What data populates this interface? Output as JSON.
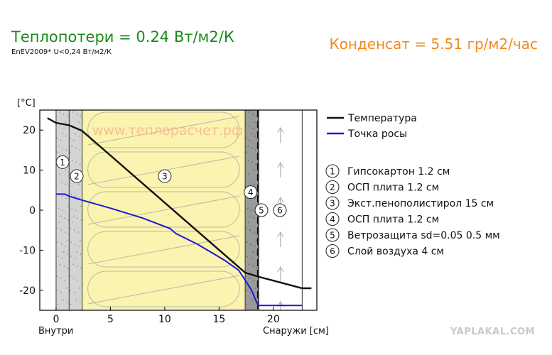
{
  "header": {
    "heat_loss": "Теплопотери = 0.24 Вт/м2/К",
    "norm": "EnEV2009* U<0,24 Вт/м2/К",
    "condensate": "Конденсат = 5.51 гр/м2/час"
  },
  "watermark": "www.теплорасчет.рф",
  "site_badge": "YAPLAKAL.COM",
  "colors": {
    "heat_loss": "#1a8a1a",
    "condensate": "#f08a1c",
    "temperature": "#111111",
    "dew_point": "#1a1ad0",
    "insulation": "#fbf3b0",
    "board": "#d4d4d4",
    "osb_outer": "#9a9a9a"
  },
  "chart_data": {
    "type": "line",
    "title": "",
    "ylabel": "[°C]",
    "xlabel_left": "Внутри",
    "xlabel_right": "Снаружи [см]",
    "xlim": [
      -1.5,
      24
    ],
    "ylim": [
      -25,
      25
    ],
    "x_ticks": [
      0,
      5,
      10,
      15,
      20
    ],
    "y_ticks": [
      20,
      10,
      0,
      -10,
      -20
    ],
    "legend": {
      "position": "right",
      "series_names": [
        "Температура",
        "Точка росы"
      ]
    },
    "layers": [
      {
        "num": "1",
        "name": "Гипсокартон 1.2 см",
        "x0": 0,
        "x1": 1.2,
        "fill": "board"
      },
      {
        "num": "2",
        "name": "ОСП плита 1.2 см",
        "x0": 1.2,
        "x1": 2.4,
        "fill": "board"
      },
      {
        "num": "3",
        "name": "Экст.пенополистирол 15 см",
        "x0": 2.4,
        "x1": 17.4,
        "fill": "insulation"
      },
      {
        "num": "4",
        "name": "ОСП плита 1.2 см",
        "x0": 17.4,
        "x1": 18.6,
        "fill": "osb_outer"
      },
      {
        "num": "5",
        "name": "Ветрозащита sd=0.05 0.5 мм",
        "x0": 18.6,
        "x1": 18.65,
        "fill": "membrane"
      },
      {
        "num": "6",
        "name": "Слой воздуха 4 см",
        "x0": 18.65,
        "x1": 22.65,
        "fill": "air"
      }
    ],
    "series": [
      {
        "name": "Температура",
        "color": "#111111",
        "x": [
          -0.8,
          0,
          1.2,
          2.4,
          17.4,
          18.6,
          22.65,
          23.5
        ],
        "y": [
          23,
          21.8,
          21.2,
          19.8,
          -15.6,
          -16.6,
          -19.5,
          -19.5
        ]
      },
      {
        "name": "Точка росы",
        "color": "#1a1ad0",
        "x": [
          0,
          0.8,
          1.2,
          2.4,
          5,
          8,
          10.5,
          11,
          13,
          15.5,
          16.8,
          17.4,
          18,
          18.3,
          18.6,
          22.65
        ],
        "y": [
          4,
          4,
          3.5,
          2.5,
          0.5,
          -2,
          -4.6,
          -5.8,
          -8.5,
          -12.5,
          -15,
          -17.5,
          -20,
          -22,
          -23.8,
          -23.8
        ]
      }
    ]
  }
}
